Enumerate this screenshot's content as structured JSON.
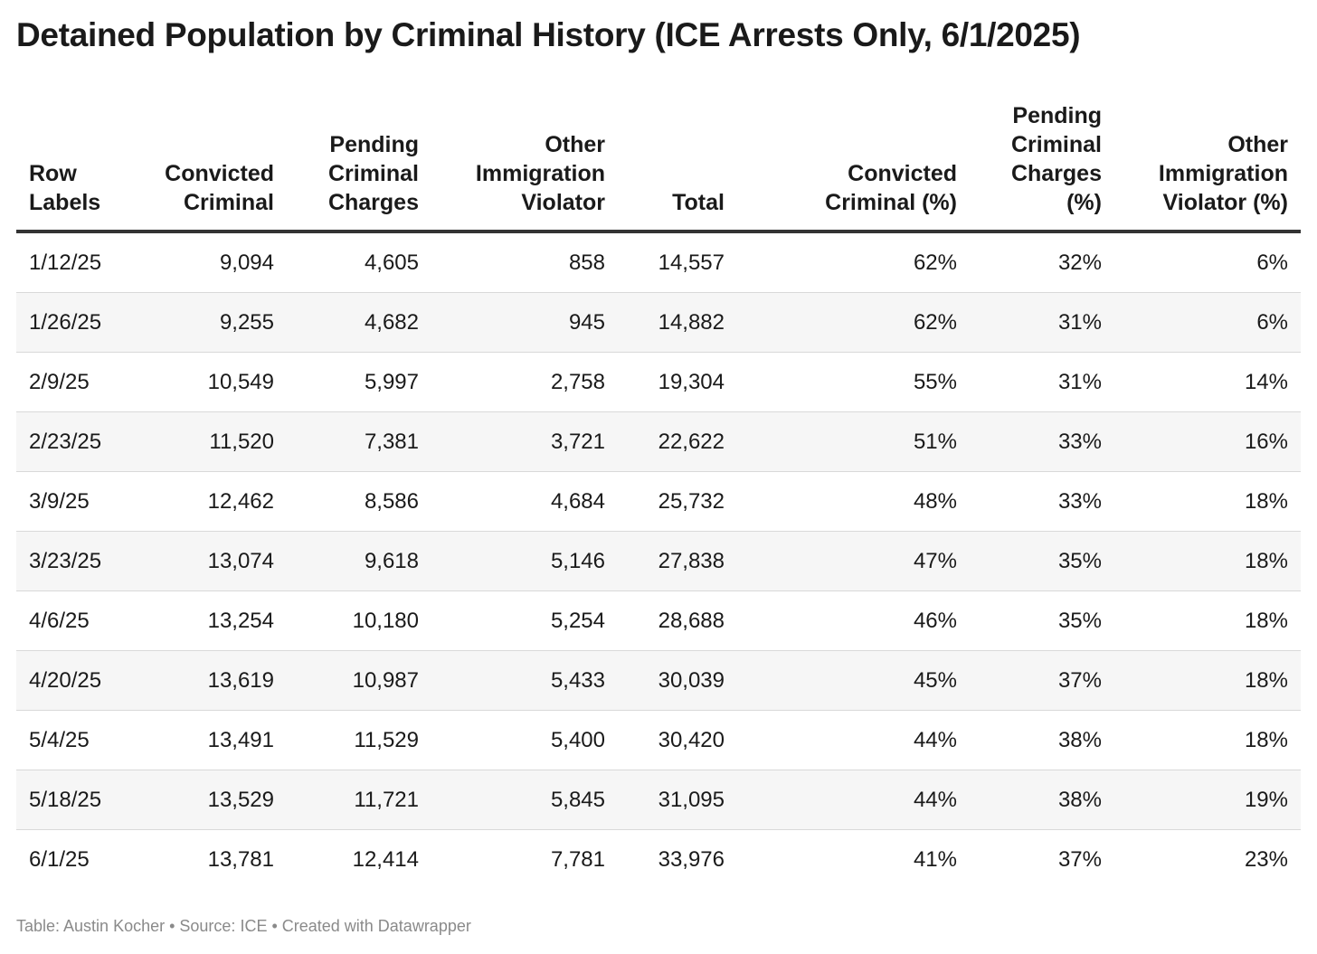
{
  "title": "Detained Population by Criminal History (ICE Arrests Only, 6/1/2025)",
  "columns": [
    {
      "lines": [
        "Row",
        "Labels"
      ],
      "align": "left"
    },
    {
      "lines": [
        "Convicted",
        "Criminal"
      ],
      "align": "right"
    },
    {
      "lines": [
        "Pending",
        "Criminal",
        "Charges"
      ],
      "align": "right"
    },
    {
      "lines": [
        "Other",
        "Immigration",
        "Violator"
      ],
      "align": "right"
    },
    {
      "lines": [
        "Total"
      ],
      "align": "right"
    },
    {
      "lines": [
        "Convicted",
        "Criminal (%)"
      ],
      "align": "right"
    },
    {
      "lines": [
        "Pending",
        "Criminal",
        "Charges",
        "(%)"
      ],
      "align": "right"
    },
    {
      "lines": [
        "Other",
        "Immigration",
        "Violator (%)"
      ],
      "align": "right"
    }
  ],
  "chart_data": {
    "type": "table",
    "title": "Detained Population by Criminal History (ICE Arrests Only, 6/1/2025)",
    "headers": [
      "Row Labels",
      "Convicted Criminal",
      "Pending Criminal Charges",
      "Other Immigration Violator",
      "Total",
      "Convicted Criminal (%)",
      "Pending Criminal Charges (%)",
      "Other Immigration Violator (%)"
    ],
    "rows": [
      [
        "1/12/25",
        "9,094",
        "4,605",
        "858",
        "14,557",
        "62%",
        "32%",
        "6%"
      ],
      [
        "1/26/25",
        "9,255",
        "4,682",
        "945",
        "14,882",
        "62%",
        "31%",
        "6%"
      ],
      [
        "2/9/25",
        "10,549",
        "5,997",
        "2,758",
        "19,304",
        "55%",
        "31%",
        "14%"
      ],
      [
        "2/23/25",
        "11,520",
        "7,381",
        "3,721",
        "22,622",
        "51%",
        "33%",
        "16%"
      ],
      [
        "3/9/25",
        "12,462",
        "8,586",
        "4,684",
        "25,732",
        "48%",
        "33%",
        "18%"
      ],
      [
        "3/23/25",
        "13,074",
        "9,618",
        "5,146",
        "27,838",
        "47%",
        "35%",
        "18%"
      ],
      [
        "4/6/25",
        "13,254",
        "10,180",
        "5,254",
        "28,688",
        "46%",
        "35%",
        "18%"
      ],
      [
        "4/20/25",
        "13,619",
        "10,987",
        "5,433",
        "30,039",
        "45%",
        "37%",
        "18%"
      ],
      [
        "5/4/25",
        "13,491",
        "11,529",
        "5,400",
        "30,420",
        "44%",
        "38%",
        "18%"
      ],
      [
        "5/18/25",
        "13,529",
        "11,721",
        "5,845",
        "31,095",
        "44%",
        "38%",
        "19%"
      ],
      [
        "6/1/25",
        "13,781",
        "12,414",
        "7,781",
        "33,976",
        "41%",
        "37%",
        "23%"
      ]
    ]
  },
  "footer": "Table: Austin Kocher • Source: ICE • Created with Datawrapper"
}
